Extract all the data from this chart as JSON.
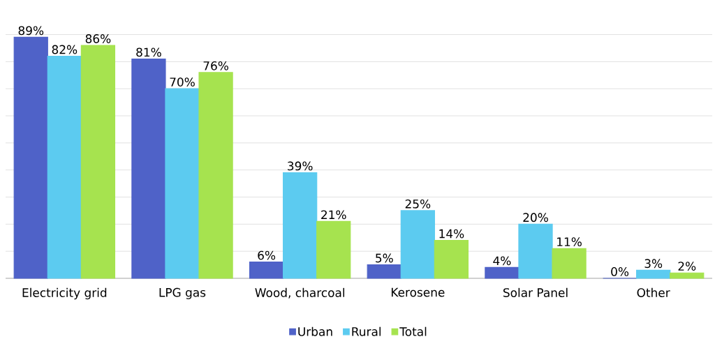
{
  "chart_data": {
    "type": "bar",
    "categories": [
      "Electricity grid",
      "LPG gas",
      "Wood, charcoal",
      "Kerosene",
      "Solar Panel",
      "Other"
    ],
    "series": [
      {
        "name": "Urban",
        "color": "#4f62c8",
        "values": [
          89,
          81,
          6,
          5,
          4,
          0
        ],
        "value_labels": [
          "89%",
          "81%",
          "6%",
          "5%",
          "4%",
          "0%"
        ]
      },
      {
        "name": "Rural",
        "color": "#5ccbf0",
        "values": [
          82,
          70,
          39,
          25,
          20,
          3
        ],
        "value_labels": [
          "82%",
          "70%",
          "39%",
          "25%",
          "20%",
          "3%"
        ]
      },
      {
        "name": "Total",
        "color": "#a6e34f",
        "values": [
          86,
          76,
          21,
          14,
          11,
          2
        ],
        "value_labels": [
          "86%",
          "76%",
          "21%",
          "14%",
          "11%",
          "2%"
        ]
      }
    ],
    "tick_labels": "x",
    "grid": "y",
    "legend": "bottom"
  }
}
